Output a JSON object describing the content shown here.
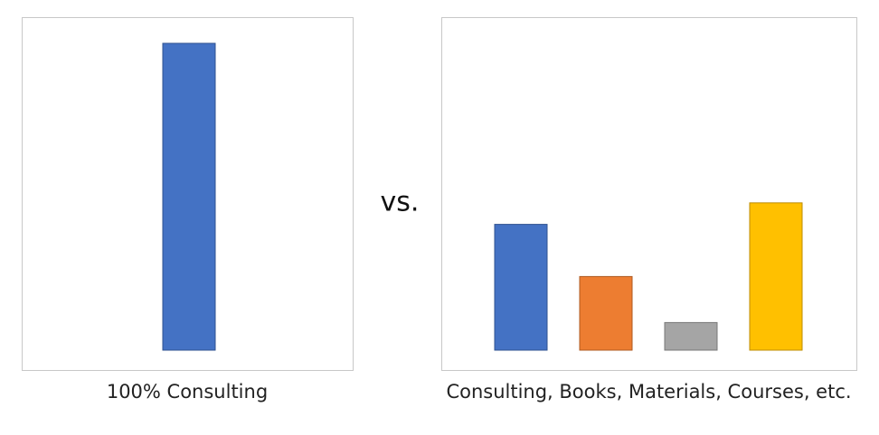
{
  "chart_data": [
    {
      "type": "bar",
      "values": [
        100
      ],
      "colors": [
        "#4472c4"
      ],
      "ylim": [
        0,
        100
      ],
      "xlabel": "100% Consulting"
    },
    {
      "type": "bar",
      "values": [
        41,
        24,
        9,
        48
      ],
      "colors": [
        "#4472c4",
        "#ed7d31",
        "#a5a5a5",
        "#ffc000"
      ],
      "ylim": [
        0,
        100
      ],
      "xlabel": "Consulting, Books, Materials, Courses, etc."
    }
  ],
  "separator": "vs."
}
